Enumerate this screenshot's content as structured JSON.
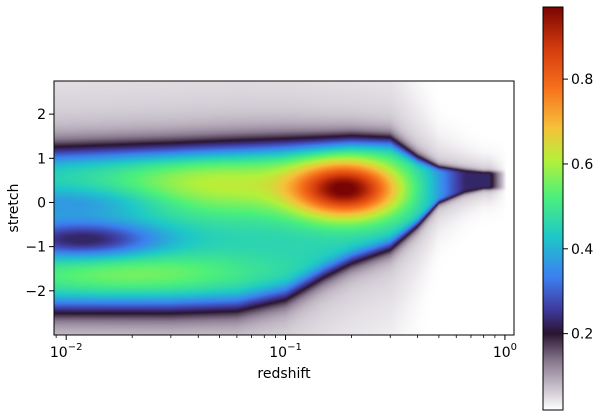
{
  "chart_data": {
    "type": "heatmap",
    "title": "",
    "xlabel": "redshift",
    "ylabel": "stretch",
    "x_scale": "log",
    "xlim": [
      0.0088,
      1.1
    ],
    "ylim": [
      -3.0,
      2.75
    ],
    "x_ticks": [
      {
        "value": 0.01,
        "base": "10",
        "exp": "−2"
      },
      {
        "value": 0.1,
        "base": "10",
        "exp": "−1"
      },
      {
        "value": 1,
        "base": "10",
        "exp": "0"
      }
    ],
    "y_ticks": [
      {
        "value": 2,
        "label": "2"
      },
      {
        "value": 1,
        "label": "1"
      },
      {
        "value": 0,
        "label": "0"
      },
      {
        "value": -1,
        "label": "−1"
      },
      {
        "value": -2,
        "label": "−2"
      }
    ],
    "colorbar": {
      "colormap": "turbo",
      "range": [
        0.02,
        0.97
      ],
      "ticks": [
        {
          "value": 0.2,
          "label": "0.2"
        },
        {
          "value": 0.4,
          "label": "0.4"
        },
        {
          "value": 0.6,
          "label": "0.6"
        },
        {
          "value": 0.8,
          "label": "0.8"
        }
      ]
    },
    "density_profile": {
      "z": [
        0.009,
        0.015,
        0.03,
        0.06,
        0.1,
        0.15,
        0.2,
        0.3,
        0.4,
        0.5,
        0.65,
        0.8
      ],
      "upper_edge": [
        1.15,
        1.18,
        1.22,
        1.28,
        1.33,
        1.38,
        1.42,
        1.4,
        1.0,
        0.8,
        0.75,
        0.7
      ],
      "lower_edge": [
        -2.4,
        -2.4,
        -2.4,
        -2.35,
        -2.1,
        -1.6,
        -1.3,
        -1.0,
        -0.5,
        0.0,
        0.2,
        0.3
      ],
      "peak": {
        "z": 0.19,
        "stretch": 0.3,
        "density": 0.95
      }
    }
  }
}
